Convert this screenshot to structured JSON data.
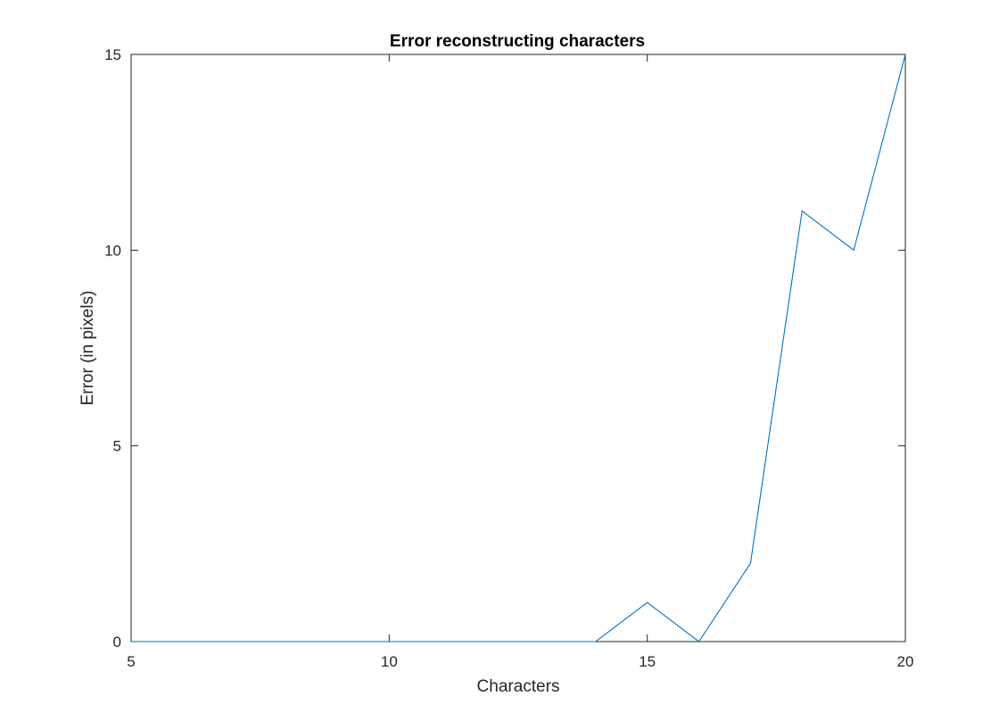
{
  "chart_data": {
    "type": "line",
    "title": "Error reconstructing characters",
    "xlabel": "Characters",
    "ylabel": "Error (in pixels)",
    "xlim": [
      5,
      20
    ],
    "ylim": [
      0,
      15
    ],
    "xticks": [
      5,
      10,
      15,
      20
    ],
    "yticks": [
      0,
      5,
      10,
      15
    ],
    "xtick_labels": [
      "5",
      "10",
      "15",
      "20"
    ],
    "ytick_labels": [
      "0",
      "5",
      "10",
      "15"
    ],
    "grid": false,
    "series": [
      {
        "color": "#0072BD",
        "x": [
          5,
          6,
          7,
          8,
          9,
          10,
          11,
          12,
          13,
          14,
          15,
          16,
          17,
          18,
          19,
          20
        ],
        "y": [
          0,
          0,
          0,
          0,
          0,
          0,
          0,
          0,
          0,
          0,
          1,
          0,
          2,
          11,
          10,
          15
        ]
      }
    ]
  }
}
